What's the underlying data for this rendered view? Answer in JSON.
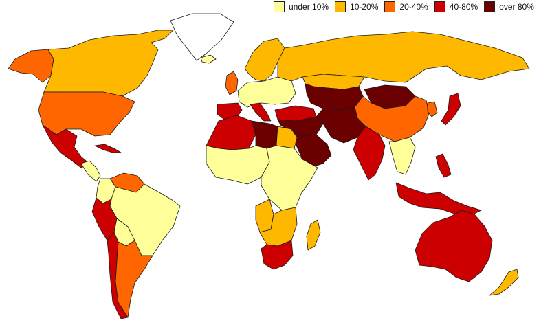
{
  "legend": {
    "items": [
      {
        "label": "under 10%",
        "color": "#ffff99"
      },
      {
        "label": "10-20%",
        "color": "#ffb800"
      },
      {
        "label": "20-40%",
        "color": "#ff6600"
      },
      {
        "label": "40-80%",
        "color": "#cc0000"
      },
      {
        "label": "over 80%",
        "color": "#6b0000"
      }
    ]
  },
  "regions": [
    {
      "name": "alaska",
      "class": "20-40%"
    },
    {
      "name": "canada",
      "class": "10-20%"
    },
    {
      "name": "greenland",
      "class": "none"
    },
    {
      "name": "usa",
      "class": "20-40%"
    },
    {
      "name": "mexico",
      "class": "40-80%"
    },
    {
      "name": "central-america",
      "class": "under 10%"
    },
    {
      "name": "caribbean",
      "class": "40-80%"
    },
    {
      "name": "venezuela",
      "class": "20-40%"
    },
    {
      "name": "colombia",
      "class": "under 10%"
    },
    {
      "name": "brazil",
      "class": "under 10%"
    },
    {
      "name": "peru",
      "class": "40-80%"
    },
    {
      "name": "bolivia",
      "class": "under 10%"
    },
    {
      "name": "chile",
      "class": "40-80%"
    },
    {
      "name": "argentina",
      "class": "20-40%"
    },
    {
      "name": "iceland",
      "class": "under 10%"
    },
    {
      "name": "uk",
      "class": "20-40%"
    },
    {
      "name": "scandinavia",
      "class": "10-20%"
    },
    {
      "name": "western-europe",
      "class": "under 10%"
    },
    {
      "name": "iberia",
      "class": "40-80%"
    },
    {
      "name": "italy",
      "class": "40-80%"
    },
    {
      "name": "turkey",
      "class": "40-80%"
    },
    {
      "name": "russia",
      "class": "10-20%"
    },
    {
      "name": "kazakhstan",
      "class": "10-20%"
    },
    {
      "name": "central-asia",
      "class": "over 80%"
    },
    {
      "name": "mongolia",
      "class": "over 80%"
    },
    {
      "name": "china",
      "class": "20-40%"
    },
    {
      "name": "korea",
      "class": "20-40%"
    },
    {
      "name": "japan",
      "class": "40-80%"
    },
    {
      "name": "middle-east",
      "class": "over 80%"
    },
    {
      "name": "arabia",
      "class": "over 80%"
    },
    {
      "name": "iran-pakistan",
      "class": "over 80%"
    },
    {
      "name": "india",
      "class": "40-80%"
    },
    {
      "name": "southeast-asia",
      "class": "under 10%"
    },
    {
      "name": "indonesia",
      "class": "40-80%"
    },
    {
      "name": "philippines",
      "class": "40-80%"
    },
    {
      "name": "australia",
      "class": "40-80%"
    },
    {
      "name": "new-zealand",
      "class": "10-20%"
    },
    {
      "name": "north-africa-west",
      "class": "40-80%"
    },
    {
      "name": "libya",
      "class": "over 80%"
    },
    {
      "name": "egypt",
      "class": "10-20%"
    },
    {
      "name": "west-africa",
      "class": "under 10%"
    },
    {
      "name": "east-africa",
      "class": "under 10%"
    },
    {
      "name": "angola",
      "class": "10-20%"
    },
    {
      "name": "southern-africa",
      "class": "10-20%"
    },
    {
      "name": "south-africa",
      "class": "40-80%"
    },
    {
      "name": "madagascar",
      "class": "10-20%"
    }
  ]
}
